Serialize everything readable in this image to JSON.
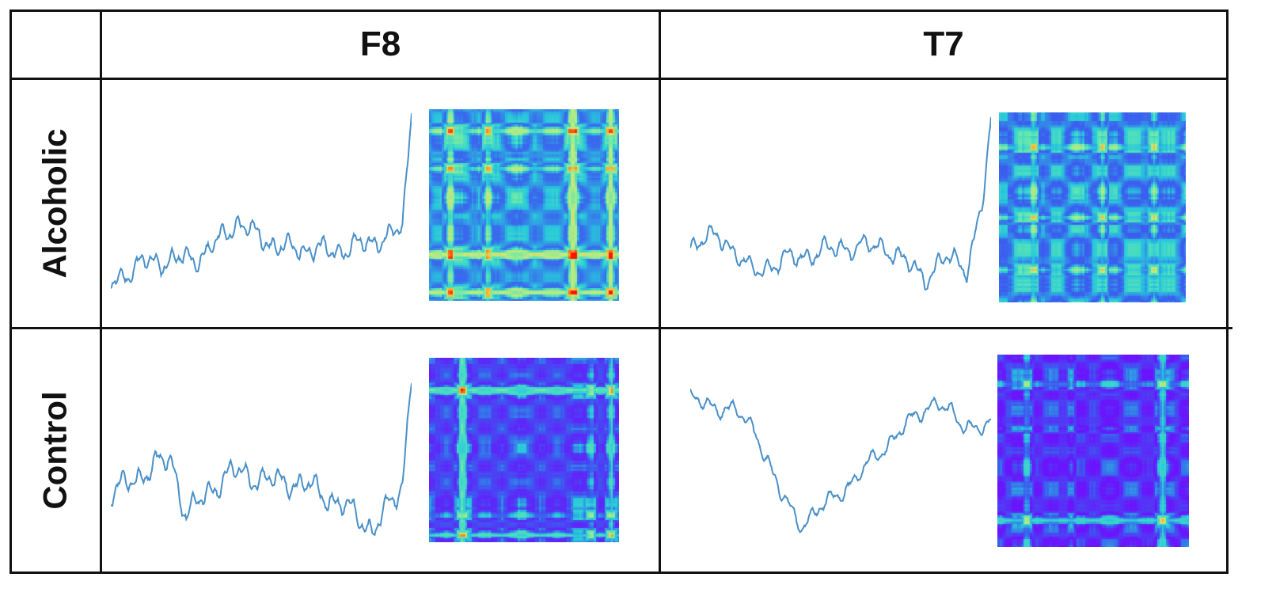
{
  "columns": [
    {
      "label": "F8"
    },
    {
      "label": "T7"
    }
  ],
  "rows": [
    {
      "label": "Alcoholic"
    },
    {
      "label": "Control"
    }
  ],
  "colors": {
    "trace": "#4a90c8",
    "grid_line": "#111111",
    "rp_low": "#7f00ff",
    "rp_mid": "#39c3df",
    "rp_high": "#ff1e00"
  }
}
